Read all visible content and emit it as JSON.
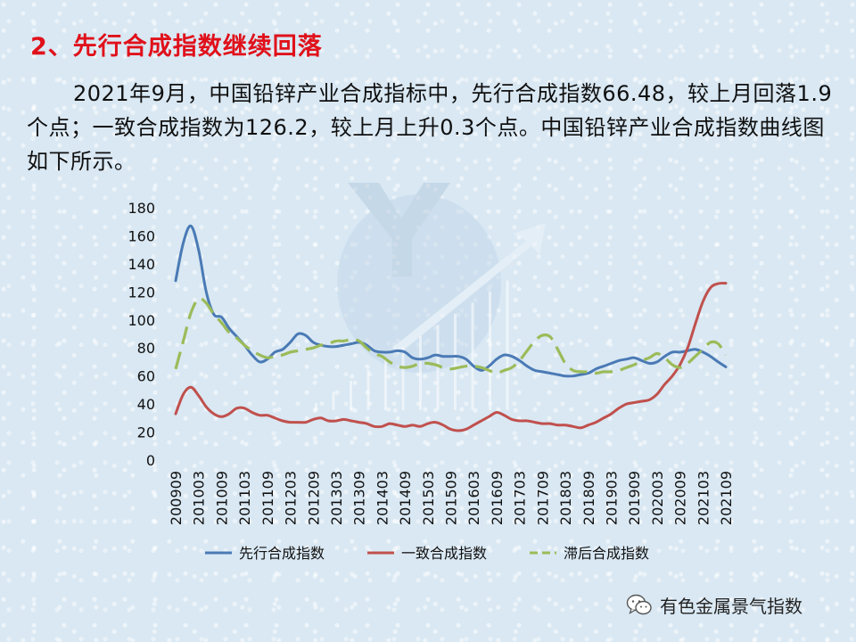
{
  "heading": "2、先行合成指数继续回落",
  "paragraph": "2021年9月，中国铅锌产业合成指标中，先行合成指数66.48，较上月回落1.9个点；一致合成指数为126.2，较上月上升0.3个点。中国铅锌产业合成指数曲线图如下所示。",
  "source": {
    "name": "有色金属景气指数",
    "icon": "wechat-icon"
  },
  "chart_data": {
    "type": "line",
    "ylim": [
      0,
      180
    ],
    "yticks": [
      0,
      20,
      40,
      60,
      80,
      100,
      120,
      140,
      160,
      180
    ],
    "x_tick_labels": [
      "200909",
      "201003",
      "201009",
      "201103",
      "201109",
      "201203",
      "201209",
      "201303",
      "201309",
      "201403",
      "201409",
      "201503",
      "201509",
      "201603",
      "201609",
      "201703",
      "201709",
      "201803",
      "201809",
      "201903",
      "201909",
      "202003",
      "202009",
      "202103",
      "202109"
    ],
    "grid": false,
    "legend_position": "bottom",
    "series": [
      {
        "name": "先行合成指数",
        "color": "#4a7ab5",
        "dash": "solid",
        "points": [
          [
            "200909",
            128
          ],
          [
            "200911",
            155
          ],
          [
            "201001",
            167
          ],
          [
            "201003",
            150
          ],
          [
            "201005",
            120
          ],
          [
            "201007",
            104
          ],
          [
            "201009",
            102
          ],
          [
            "201011",
            94
          ],
          [
            "201101",
            88
          ],
          [
            "201103",
            82
          ],
          [
            "201105",
            75
          ],
          [
            "201107",
            70
          ],
          [
            "201109",
            72
          ],
          [
            "201111",
            77
          ],
          [
            "201201",
            79
          ],
          [
            "201203",
            84
          ],
          [
            "201205",
            90
          ],
          [
            "201207",
            89
          ],
          [
            "201209",
            84
          ],
          [
            "201211",
            82
          ],
          [
            "201301",
            81
          ],
          [
            "201303",
            81
          ],
          [
            "201305",
            82
          ],
          [
            "201307",
            83
          ],
          [
            "201309",
            84
          ],
          [
            "201311",
            82
          ],
          [
            "201401",
            78
          ],
          [
            "201403",
            77
          ],
          [
            "201405",
            77
          ],
          [
            "201407",
            78
          ],
          [
            "201409",
            77
          ],
          [
            "201411",
            73
          ],
          [
            "201501",
            72
          ],
          [
            "201503",
            73
          ],
          [
            "201505",
            75
          ],
          [
            "201507",
            74
          ],
          [
            "201509",
            74
          ],
          [
            "201511",
            74
          ],
          [
            "201601",
            72
          ],
          [
            "201603",
            67
          ],
          [
            "201605",
            64
          ],
          [
            "201607",
            67
          ],
          [
            "201609",
            72
          ],
          [
            "201611",
            75
          ],
          [
            "201701",
            74
          ],
          [
            "201703",
            71
          ],
          [
            "201705",
            67
          ],
          [
            "201707",
            64
          ],
          [
            "201709",
            63
          ],
          [
            "201711",
            62
          ],
          [
            "201801",
            61
          ],
          [
            "201803",
            60
          ],
          [
            "201805",
            60
          ],
          [
            "201807",
            61
          ],
          [
            "201809",
            62
          ],
          [
            "201811",
            65
          ],
          [
            "201901",
            67
          ],
          [
            "201903",
            69
          ],
          [
            "201905",
            71
          ],
          [
            "201907",
            72
          ],
          [
            "201909",
            73
          ],
          [
            "201911",
            71
          ],
          [
            "202001",
            69
          ],
          [
            "202003",
            70
          ],
          [
            "202005",
            74
          ],
          [
            "202007",
            77
          ],
          [
            "202009",
            77
          ],
          [
            "202011",
            78
          ],
          [
            "202101",
            79
          ],
          [
            "202103",
            77
          ],
          [
            "202105",
            74
          ],
          [
            "202107",
            70
          ],
          [
            "202109",
            66.48
          ]
        ]
      },
      {
        "name": "一致合成指数",
        "color": "#c0504d",
        "dash": "solid",
        "points": [
          [
            "200909",
            33
          ],
          [
            "200911",
            47
          ],
          [
            "201001",
            52
          ],
          [
            "201003",
            46
          ],
          [
            "201005",
            38
          ],
          [
            "201007",
            33
          ],
          [
            "201009",
            31
          ],
          [
            "201011",
            33
          ],
          [
            "201101",
            37
          ],
          [
            "201103",
            37
          ],
          [
            "201105",
            34
          ],
          [
            "201107",
            32
          ],
          [
            "201109",
            32
          ],
          [
            "201111",
            30
          ],
          [
            "201201",
            28
          ],
          [
            "201203",
            27
          ],
          [
            "201205",
            27
          ],
          [
            "201207",
            27
          ],
          [
            "201209",
            29
          ],
          [
            "201211",
            30
          ],
          [
            "201301",
            28
          ],
          [
            "201303",
            28
          ],
          [
            "201305",
            29
          ],
          [
            "201307",
            28
          ],
          [
            "201309",
            27
          ],
          [
            "201311",
            26
          ],
          [
            "201401",
            24
          ],
          [
            "201403",
            24
          ],
          [
            "201405",
            26
          ],
          [
            "201407",
            25
          ],
          [
            "201409",
            24
          ],
          [
            "201411",
            25
          ],
          [
            "201501",
            24
          ],
          [
            "201503",
            26
          ],
          [
            "201505",
            27
          ],
          [
            "201507",
            25
          ],
          [
            "201509",
            22
          ],
          [
            "201511",
            21
          ],
          [
            "201601",
            22
          ],
          [
            "201603",
            25
          ],
          [
            "201605",
            28
          ],
          [
            "201607",
            31
          ],
          [
            "201609",
            34
          ],
          [
            "201611",
            32
          ],
          [
            "201701",
            29
          ],
          [
            "201703",
            28
          ],
          [
            "201705",
            28
          ],
          [
            "201707",
            27
          ],
          [
            "201709",
            26
          ],
          [
            "201711",
            26
          ],
          [
            "201801",
            25
          ],
          [
            "201803",
            25
          ],
          [
            "201805",
            24
          ],
          [
            "201807",
            23
          ],
          [
            "201809",
            25
          ],
          [
            "201811",
            27
          ],
          [
            "201901",
            30
          ],
          [
            "201903",
            33
          ],
          [
            "201905",
            37
          ],
          [
            "201907",
            40
          ],
          [
            "201909",
            41
          ],
          [
            "201911",
            42
          ],
          [
            "202001",
            43
          ],
          [
            "202003",
            47
          ],
          [
            "202005",
            54
          ],
          [
            "202007",
            60
          ],
          [
            "202009",
            68
          ],
          [
            "202011",
            80
          ],
          [
            "202101",
            97
          ],
          [
            "202103",
            113
          ],
          [
            "202105",
            123
          ],
          [
            "202107",
            125.9
          ],
          [
            "202109",
            126.2
          ]
        ]
      },
      {
        "name": "滞后合成指数",
        "color": "#9bbb59",
        "dash": "dashed",
        "points": [
          [
            "200909",
            65
          ],
          [
            "200911",
            85
          ],
          [
            "201001",
            105
          ],
          [
            "201003",
            115
          ],
          [
            "201005",
            112
          ],
          [
            "201007",
            104
          ],
          [
            "201009",
            98
          ],
          [
            "201011",
            91
          ],
          [
            "201101",
            87
          ],
          [
            "201103",
            82
          ],
          [
            "201105",
            78
          ],
          [
            "201107",
            75
          ],
          [
            "201109",
            73
          ],
          [
            "201111",
            74
          ],
          [
            "201201",
            75
          ],
          [
            "201203",
            77
          ],
          [
            "201205",
            78
          ],
          [
            "201207",
            79
          ],
          [
            "201209",
            80
          ],
          [
            "201211",
            82
          ],
          [
            "201301",
            83
          ],
          [
            "201303",
            85
          ],
          [
            "201305",
            85
          ],
          [
            "201307",
            86
          ],
          [
            "201309",
            85
          ],
          [
            "201311",
            80
          ],
          [
            "201401",
            76
          ],
          [
            "201403",
            74
          ],
          [
            "201405",
            70
          ],
          [
            "201407",
            67
          ],
          [
            "201409",
            66
          ],
          [
            "201411",
            67
          ],
          [
            "201501",
            69
          ],
          [
            "201503",
            69
          ],
          [
            "201505",
            68
          ],
          [
            "201507",
            66
          ],
          [
            "201509",
            65
          ],
          [
            "201511",
            66
          ],
          [
            "201601",
            67
          ],
          [
            "201603",
            67
          ],
          [
            "201605",
            66
          ],
          [
            "201607",
            64
          ],
          [
            "201609",
            62
          ],
          [
            "201611",
            64
          ],
          [
            "201701",
            66
          ],
          [
            "201703",
            71
          ],
          [
            "201705",
            78
          ],
          [
            "201707",
            85
          ],
          [
            "201709",
            89
          ],
          [
            "201711",
            88
          ],
          [
            "201801",
            79
          ],
          [
            "201803",
            69
          ],
          [
            "201805",
            64
          ],
          [
            "201807",
            63
          ],
          [
            "201809",
            63
          ],
          [
            "201811",
            62
          ],
          [
            "201901",
            63
          ],
          [
            "201903",
            63
          ],
          [
            "201905",
            64
          ],
          [
            "201907",
            66
          ],
          [
            "201909",
            68
          ],
          [
            "201911",
            71
          ],
          [
            "202001",
            73
          ],
          [
            "202003",
            76
          ],
          [
            "202005",
            73
          ],
          [
            "202007",
            68
          ],
          [
            "202009",
            66
          ],
          [
            "202011",
            69
          ],
          [
            "202101",
            74
          ],
          [
            "202103",
            79
          ],
          [
            "202105",
            84
          ],
          [
            "202107",
            83
          ],
          [
            "202109",
            75
          ]
        ]
      }
    ]
  }
}
